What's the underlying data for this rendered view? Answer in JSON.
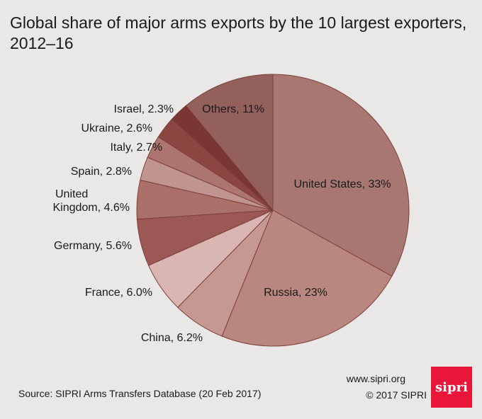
{
  "header": {
    "title_line1": "Global share of major arms exports by the 10 largest exporters,",
    "title_line2": "2012–16"
  },
  "chart_data": {
    "type": "pie",
    "title": "Global share of major arms exports by the 10 largest exporters, 2012–16",
    "unit": "%",
    "start": "12 o'clock, clockwise",
    "slices": [
      {
        "name": "United States",
        "value": 33,
        "label": "United States, 33%",
        "color": "#a97771"
      },
      {
        "name": "Russia",
        "value": 23,
        "label": "Russia, 23%",
        "color": "#b9877f"
      },
      {
        "name": "China",
        "value": 6.2,
        "label": "China, 6.2%",
        "color": "#c59992"
      },
      {
        "name": "France",
        "value": 6.0,
        "label": "France, 6.0%",
        "color": "#d9b6b1"
      },
      {
        "name": "Germany",
        "value": 5.6,
        "label": "Germany, 5.6%",
        "color": "#9c5854"
      },
      {
        "name": "United Kingdom",
        "value": 4.6,
        "label_line1": "United",
        "label_line2": "Kingdom, 4.6%",
        "color": "#ac706b"
      },
      {
        "name": "Spain",
        "value": 2.8,
        "label": "Spain, 2.8%",
        "color": "#c09590"
      },
      {
        "name": "Italy",
        "value": 2.7,
        "label": "Italy, 2.7%",
        "color": "#ad7570"
      },
      {
        "name": "Ukraine",
        "value": 2.6,
        "label": "Ukraine, 2.6%",
        "color": "#8c4642"
      },
      {
        "name": "Israel",
        "value": 2.3,
        "label": "Israel, 2.3%",
        "color": "#7a3633"
      },
      {
        "name": "Others",
        "value": 11,
        "label": "Others, 11%",
        "color": "#94605b"
      }
    ]
  },
  "footer": {
    "source": "Source: SIPRI Arms Transfers Database (20 Feb 2017)",
    "website": "www.sipri.org",
    "copyright": "© 2017 SIPRI",
    "logo_text": "sipri"
  }
}
